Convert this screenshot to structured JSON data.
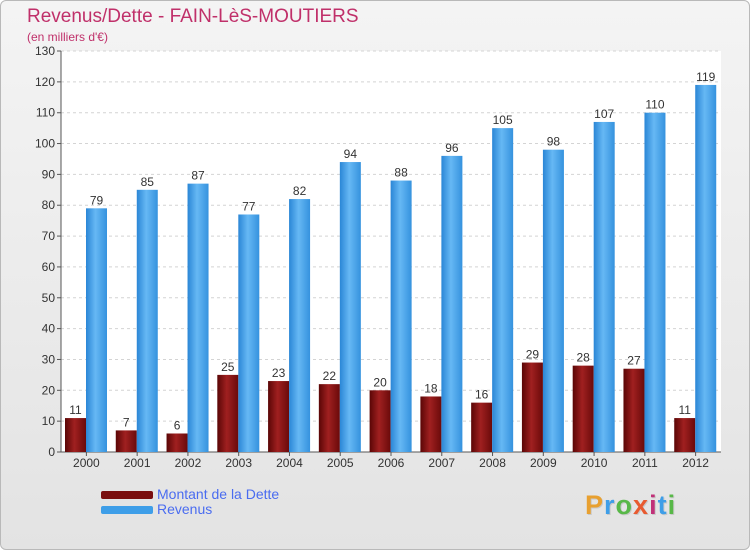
{
  "header": {
    "title": "Revenus/Dette - FAIN-LèS-MOUTIERS",
    "subtitle": "(en milliers d'€)"
  },
  "legend": [
    {
      "label": "Montant de la Dette",
      "color": "#7a0e0e"
    },
    {
      "label": "Revenus",
      "color": "#3e9ee8"
    }
  ],
  "logo": {
    "text": "Proxiti",
    "colors": [
      "#e8a030",
      "#3e9ee8",
      "#58b848",
      "#e85a30",
      "#c03078",
      "#3e9ee8",
      "#58b848"
    ]
  },
  "chart_data": {
    "type": "bar",
    "categories": [
      "2000",
      "2001",
      "2002",
      "2003",
      "2004",
      "2005",
      "2006",
      "2007",
      "2008",
      "2009",
      "2010",
      "2011",
      "2012"
    ],
    "series": [
      {
        "name": "Montant de la Dette",
        "color": "#7a0e0e",
        "values": [
          11,
          7,
          6,
          25,
          23,
          22,
          20,
          18,
          16,
          29,
          28,
          27,
          11
        ]
      },
      {
        "name": "Revenus",
        "color": "#3e9ee8",
        "values": [
          79,
          85,
          87,
          77,
          82,
          94,
          88,
          96,
          105,
          98,
          107,
          110,
          119
        ]
      }
    ],
    "yticks": [
      0,
      10,
      20,
      30,
      40,
      50,
      60,
      70,
      80,
      90,
      100,
      110,
      120,
      130
    ],
    "ylim": [
      0,
      130
    ],
    "grid": true
  }
}
